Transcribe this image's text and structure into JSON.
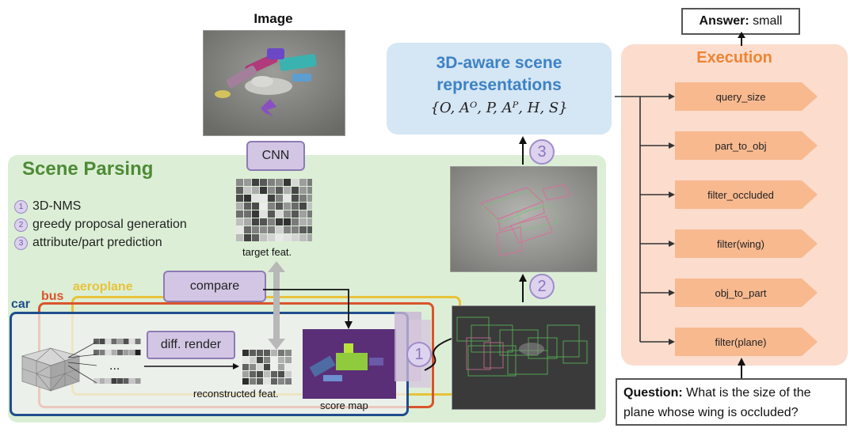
{
  "image_title": "Image",
  "cnn_label": "CNN",
  "target_feat_label": "target feat.",
  "scene_parsing": {
    "title": "Scene Parsing",
    "steps": [
      {
        "num": "1",
        "text": "3D-NMS"
      },
      {
        "num": "2",
        "text": "greedy proposal generation"
      },
      {
        "num": "3",
        "text": "attribute/part prediction"
      }
    ]
  },
  "compare_label": "compare",
  "categories": {
    "car": "car",
    "bus": "bus",
    "aeroplane": "aeroplane"
  },
  "category_colors": {
    "car": "#1f4e8c",
    "bus": "#d9542c",
    "aeroplane": "#e8c23a"
  },
  "diff_render_label": "diff. render",
  "dots": "...",
  "reconstructed_feat_label": "reconstructed feat.",
  "score_map_label": "score map",
  "step_badges": [
    "1",
    "2",
    "3"
  ],
  "representation": {
    "title_line1": "3D-aware scene",
    "title_line2": "representations",
    "formula": "{O, Aᴼ, P, Aᴾ, H, S}"
  },
  "execution": {
    "title": "Execution",
    "ops": [
      "query_size",
      "part_to_obj",
      "filter_occluded",
      "filter(wing)",
      "obj_to_part",
      "filter(plane)"
    ]
  },
  "answer": {
    "label": "Answer:",
    "value": "small"
  },
  "question": {
    "label": "Question:",
    "text": "What is the size of the plane whose wing is occluded?"
  },
  "colors": {
    "scene_bg": "#dcefd6",
    "repr_bg": "#d5e6f4",
    "exec_bg": "#fbdccd",
    "op_fill": "#f8b98f",
    "accent_purple": "#d2c6e4"
  }
}
